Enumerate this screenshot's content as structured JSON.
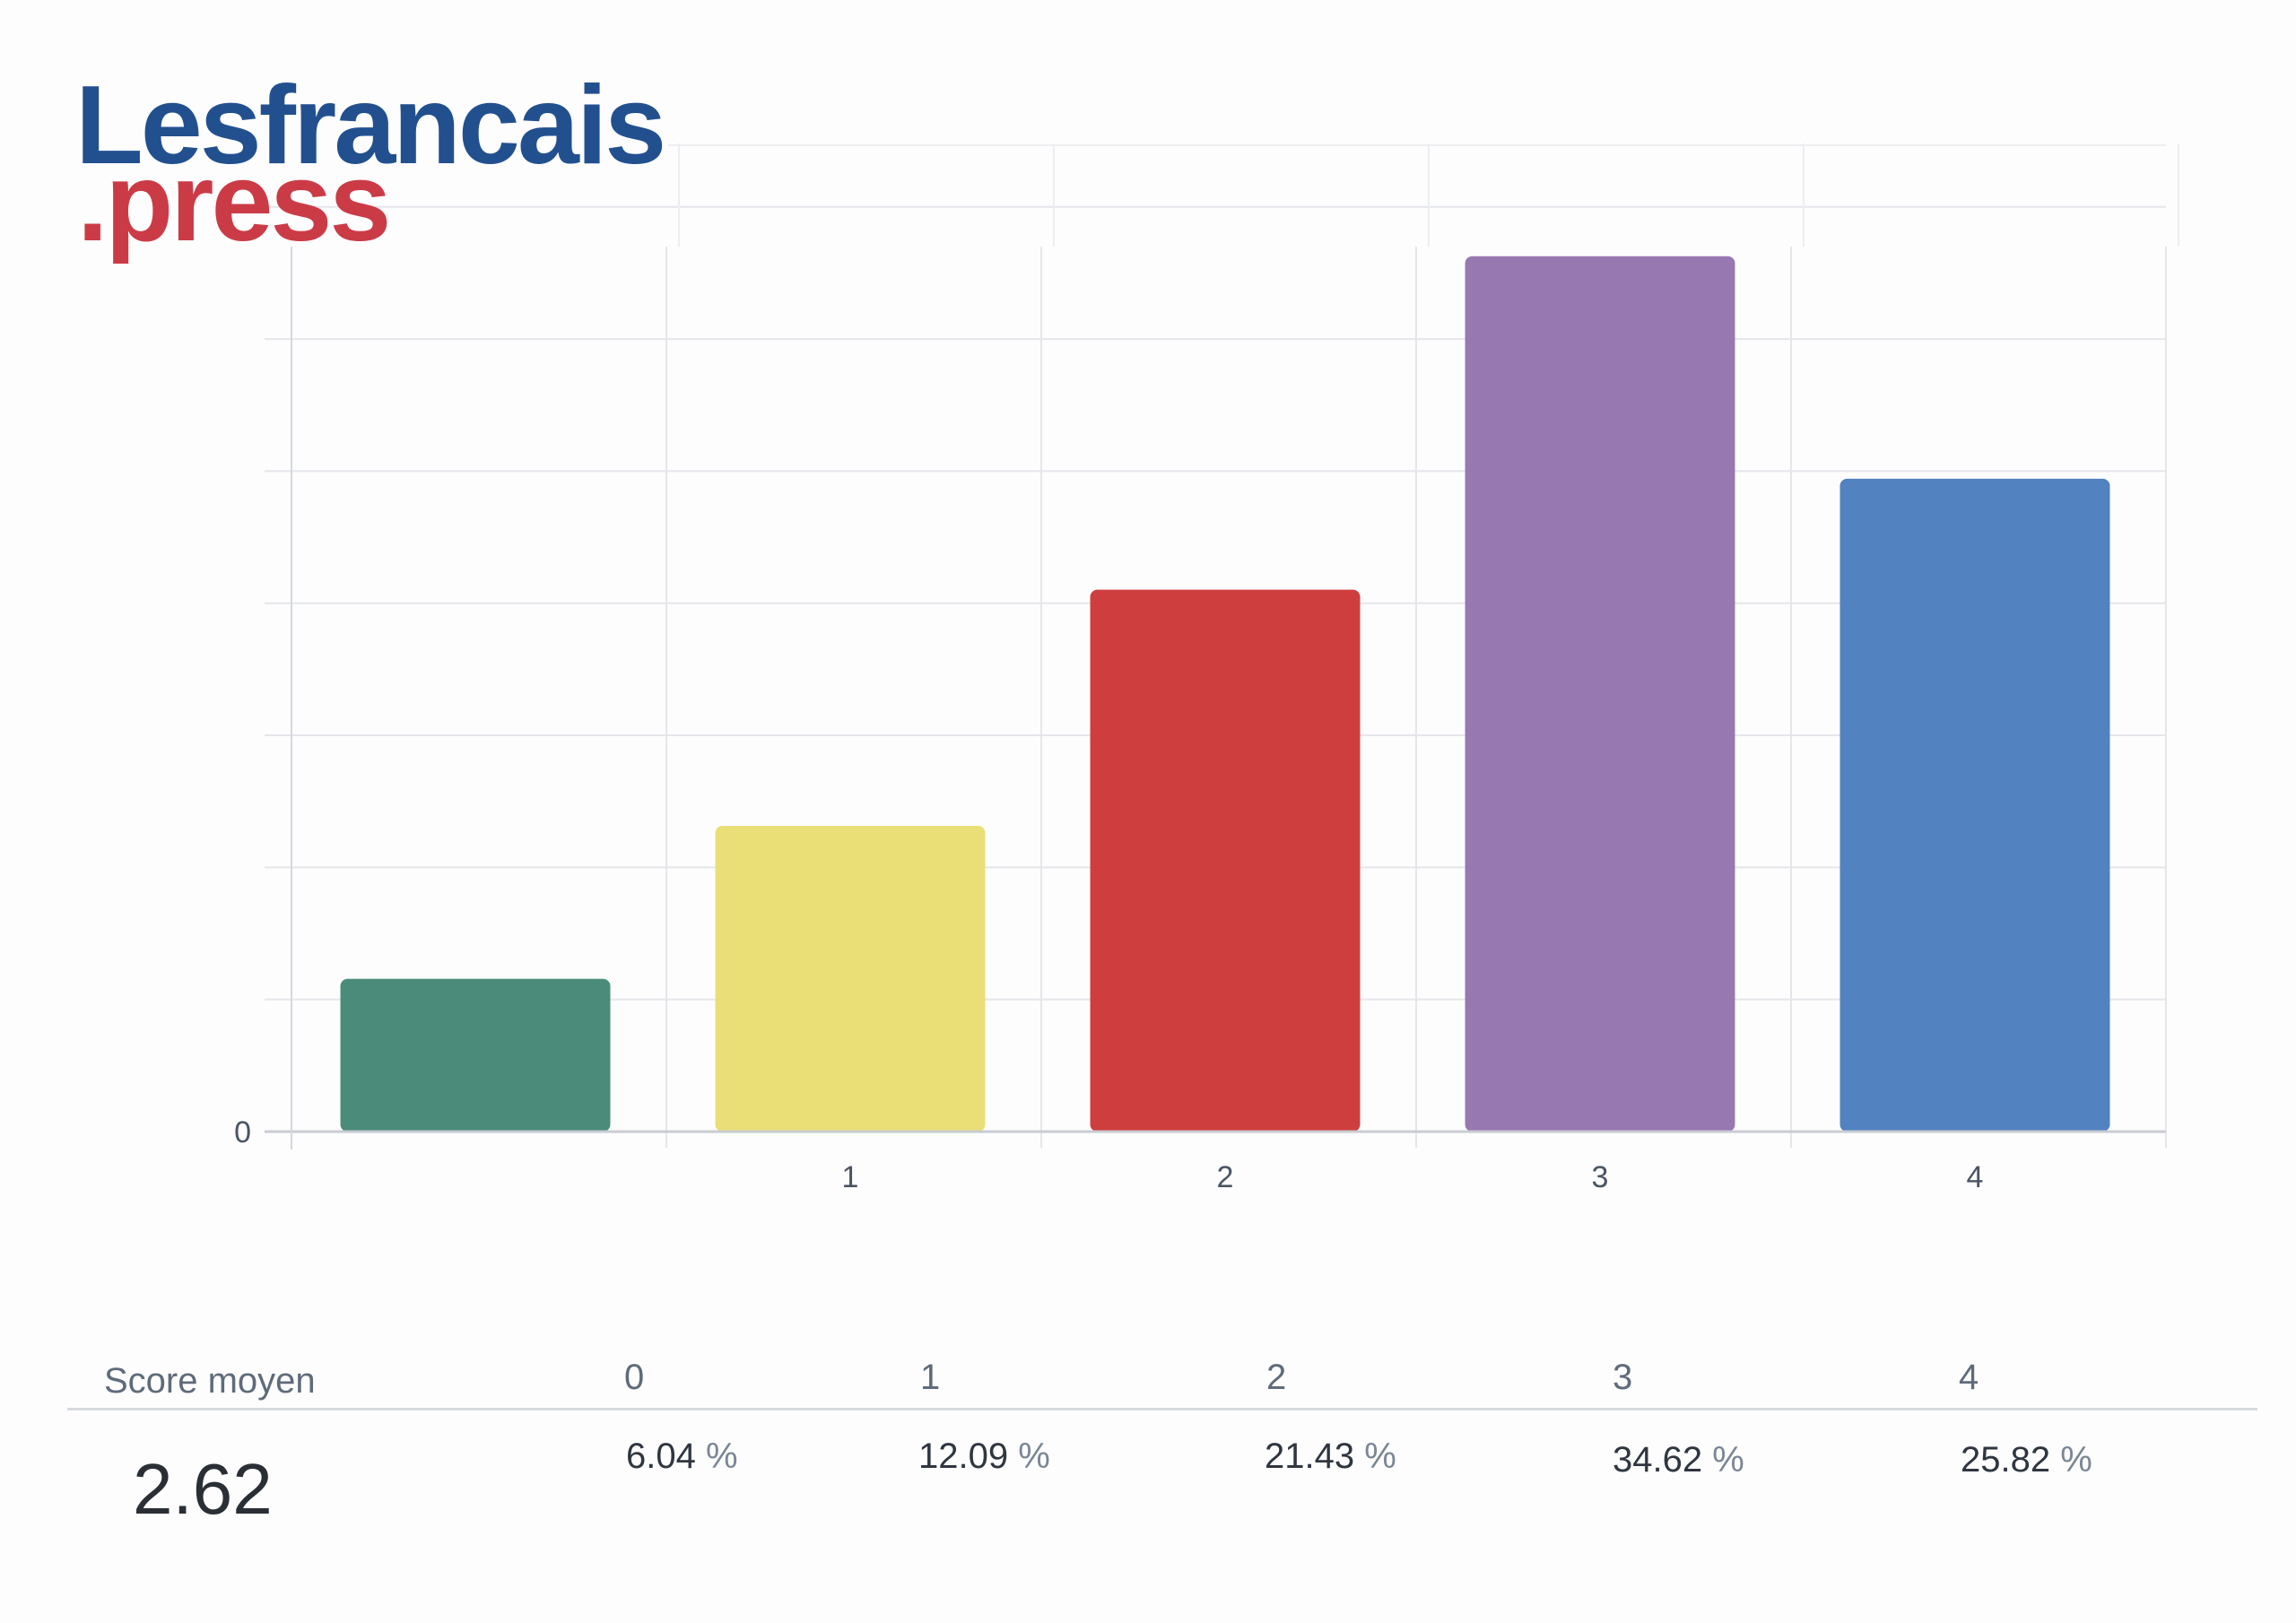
{
  "brand": {
    "logo_line1": "Lesfrancais",
    "logo_line2": ".press",
    "color_primary": "#22508f",
    "color_secondary": "#cb3b46"
  },
  "chart_data": {
    "type": "bar",
    "categories": [
      "0",
      "1",
      "2",
      "3",
      "4"
    ],
    "x_tick_labels": [
      "",
      "1",
      "2",
      "3",
      "4"
    ],
    "values": [
      6.04,
      12.09,
      21.43,
      34.62,
      25.82
    ],
    "colors": [
      "#4a8c79",
      "#eadf76",
      "#cf3e3f",
      "#9878b1",
      "#5282c0"
    ],
    "y_tick_labels": [
      "0"
    ],
    "ylim": [
      0,
      35
    ],
    "grid": true,
    "legend": "none",
    "title": "",
    "xlabel": "",
    "ylabel": ""
  },
  "summary": {
    "label": "Score moyen",
    "value": "2.62",
    "columns": [
      {
        "header": "0",
        "value": "6.04",
        "unit": "%"
      },
      {
        "header": "1",
        "value": "12.09",
        "unit": "%"
      },
      {
        "header": "2",
        "value": "21.43",
        "unit": "%"
      },
      {
        "header": "3",
        "value": "34.62",
        "unit": "%"
      },
      {
        "header": "4",
        "value": "25.82",
        "unit": "%"
      }
    ]
  }
}
